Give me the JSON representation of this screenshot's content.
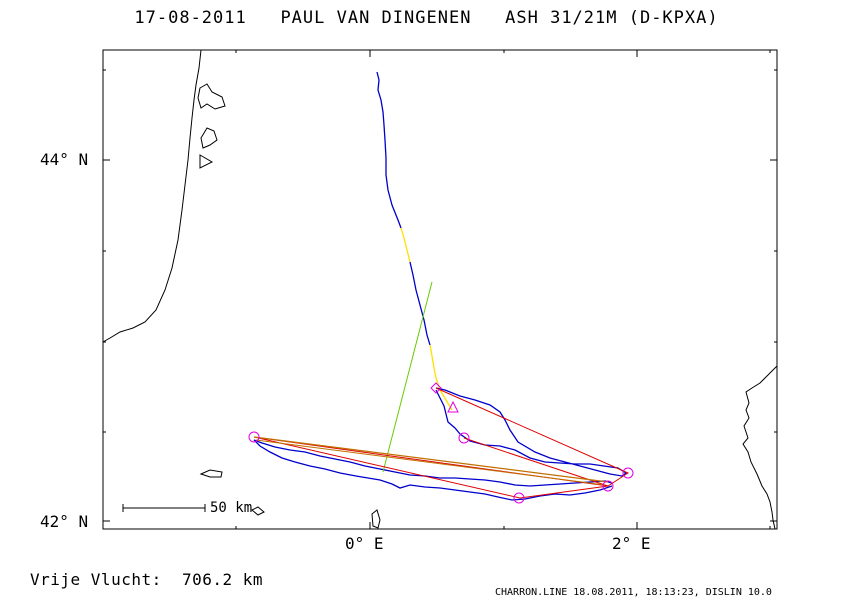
{
  "title": "17-08-2011   PAUL VAN DINGENEN   ASH 31/21M (D-KPXA)",
  "axes": {
    "lat_labels": [
      "44° N",
      "42° N"
    ],
    "lon_labels": [
      "0° E",
      "2° E"
    ]
  },
  "scale_bar": {
    "label": "50 km"
  },
  "flight": {
    "label": "Vrije Vlucht:",
    "distance": "706.2 km"
  },
  "footer": "CHARRON.LINE 18.08.2011, 18:13:23, DISLIN 10.0",
  "colors": {
    "track": "#0000cc",
    "track_highlight": "#ffe000",
    "legs": "#e00000",
    "alt_leg": "#c07000",
    "green_leg": "#66cc00",
    "turnpoint": "#e000e0"
  }
}
